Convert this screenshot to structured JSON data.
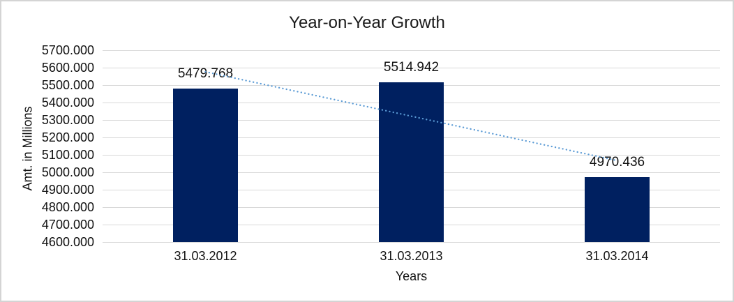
{
  "window": {
    "background": "#ffffff",
    "border_color": "#d4d4d4"
  },
  "chart_data": {
    "type": "bar",
    "title": "Year-on-Year Growth",
    "xlabel": "Years",
    "ylabel": "Amt. in Millions",
    "categories": [
      "31.03.2012",
      "31.03.2013",
      "31.03.2014"
    ],
    "values": [
      5479.768,
      5514.942,
      4970.436
    ],
    "data_labels": [
      "5479.768",
      "5514.942",
      "4970.436"
    ],
    "ylim": [
      4600,
      5700
    ],
    "ytick_step": 100,
    "ytick_labels": [
      "5700.000",
      "5600.000",
      "5500.000",
      "5400.000",
      "5300.000",
      "5200.000",
      "5100.000",
      "5000.000",
      "4900.000",
      "4800.000",
      "4700.000",
      "4600.000"
    ],
    "grid": true,
    "legend": "none",
    "bar_color": "#002060",
    "gridline_color": "#d9d9d9",
    "text_color": "#111111",
    "trendline": {
      "type": "linear",
      "style": "dotted",
      "color": "#5b9bd5"
    }
  }
}
